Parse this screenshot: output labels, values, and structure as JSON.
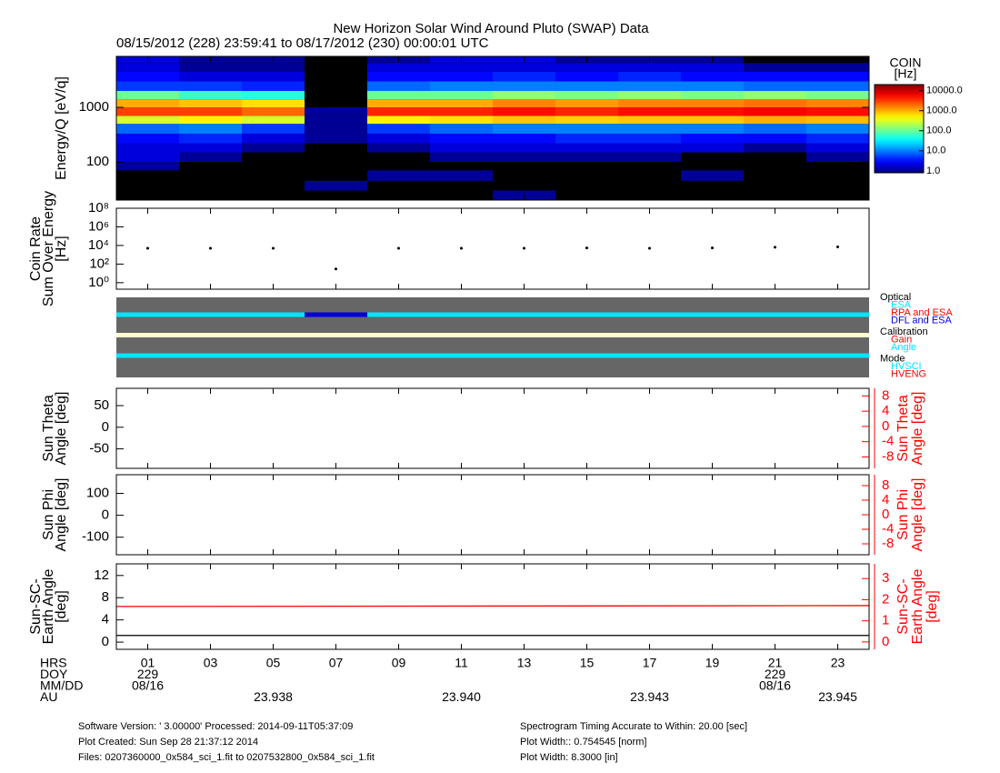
{
  "title": "New Horizon Solar Wind Around Pluto (SWAP) Data",
  "subtitle": "08/15/2012 (228) 23:59:41 to 08/17/2012 (230) 00:00:01 UTC",
  "time_axis": {
    "xlim": [
      0,
      24
    ],
    "row_labels": [
      "HRS",
      "DOY",
      "MM/DD",
      "AU"
    ],
    "hours": [
      {
        "value": 1,
        "label": "01"
      },
      {
        "value": 3,
        "label": "03"
      },
      {
        "value": 5,
        "label": "05"
      },
      {
        "value": 7,
        "label": "07"
      },
      {
        "value": 9,
        "label": "09"
      },
      11,
      13,
      15,
      17,
      19,
      21,
      23
    ],
    "doy": [
      {
        "value": 1,
        "label": "229"
      },
      {
        "value": 21,
        "label": "229"
      }
    ],
    "date": [
      {
        "value": 1,
        "label": "08/16"
      },
      {
        "value": 21,
        "label": "08/16"
      }
    ],
    "au": [
      {
        "value": 5,
        "label": "23.938"
      },
      {
        "value": 11,
        "label": "23.940"
      },
      {
        "value": 17,
        "label": "23.943"
      },
      {
        "value": 23,
        "label": "23.945"
      }
    ]
  },
  "chart_data": [
    {
      "type": "heatmap",
      "ylabel": [
        "Energy/Q [eV/q]"
      ],
      "ylog": true,
      "ylim": [
        20,
        8600
      ],
      "yticks": [
        100,
        1000
      ],
      "x_bins": [
        0,
        2,
        4,
        6,
        8,
        10,
        12,
        14,
        16,
        18,
        20,
        22,
        24
      ],
      "y_bins": [
        20,
        30,
        45,
        70,
        100,
        150,
        220,
        330,
        500,
        700,
        1000,
        1400,
        2000,
        3000,
        4500,
        6500,
        8600
      ],
      "z": [
        [
          null,
          null,
          null,
          1,
          2,
          2,
          3,
          8,
          300,
          3000,
          1000,
          100,
          5,
          3,
          2,
          2
        ],
        [
          null,
          null,
          null,
          null,
          1,
          2,
          4,
          10,
          500,
          3000,
          800,
          60,
          5,
          2,
          1,
          1
        ],
        [
          null,
          null,
          null,
          null,
          null,
          1,
          2,
          5,
          300,
          2000,
          600,
          50,
          4,
          2,
          1,
          1
        ],
        [
          null,
          1,
          null,
          null,
          null,
          null,
          1,
          1,
          1,
          1,
          null,
          null,
          null,
          null,
          null,
          null
        ],
        [
          null,
          null,
          1,
          null,
          null,
          1,
          2,
          5,
          500,
          4000,
          1000,
          100,
          8,
          3,
          2,
          1
        ],
        [
          null,
          null,
          1,
          null,
          1,
          2,
          3,
          8,
          600,
          4000,
          1000,
          100,
          10,
          3,
          2,
          2
        ],
        [
          1,
          null,
          null,
          null,
          1,
          2,
          3,
          10,
          800,
          5000,
          1500,
          150,
          10,
          4,
          2,
          2
        ],
        [
          null,
          null,
          null,
          null,
          1,
          2,
          4,
          10,
          700,
          4000,
          1200,
          120,
          10,
          3,
          2,
          1
        ],
        [
          null,
          null,
          null,
          null,
          1,
          2,
          4,
          10,
          800,
          5000,
          1500,
          150,
          10,
          4,
          2,
          1
        ],
        [
          null,
          null,
          1,
          null,
          null,
          2,
          3,
          10,
          800,
          5000,
          1500,
          120,
          10,
          3,
          2,
          1
        ],
        [
          null,
          null,
          null,
          null,
          null,
          1,
          3,
          8,
          1000,
          6000,
          1800,
          150,
          8,
          3,
          1,
          null
        ],
        [
          null,
          null,
          null,
          null,
          1,
          2,
          4,
          10,
          900,
          5000,
          1500,
          120,
          8,
          3,
          1,
          null
        ]
      ],
      "colorbar": {
        "title": [
          "COIN",
          "[Hz]"
        ],
        "zlim": [
          0.8,
          20000
        ],
        "ticks": [
          {
            "value": 1,
            "label": "1.0"
          },
          {
            "value": 10,
            "label": "10.0"
          },
          {
            "value": 100,
            "label": "100.0"
          },
          {
            "value": 1000,
            "label": "1000.0"
          },
          {
            "value": 10000,
            "label": "10000.0"
          }
        ]
      }
    },
    {
      "type": "scatter",
      "ylabel": [
        "Coin Rate",
        "Sum Over Energy",
        "[Hz]"
      ],
      "ylog": true,
      "ylim": [
        0.2,
        100000000
      ],
      "yticks": [
        {
          "value": 1,
          "label": "10⁰"
        },
        {
          "value": 100,
          "label": "10²"
        },
        {
          "value": 10000,
          "label": "10⁴"
        },
        {
          "value": 1000000,
          "label": "10⁶"
        },
        {
          "value": 100000000,
          "label": "10⁸"
        }
      ],
      "color": "#000000",
      "x": [
        1,
        3,
        5,
        7,
        9,
        11,
        13,
        15,
        17,
        19,
        21,
        23
      ],
      "values": [
        5000,
        5000,
        5000,
        30,
        5000,
        5000,
        5000,
        5500,
        5000,
        5500,
        6500,
        7000
      ]
    },
    {
      "type": "timeline",
      "background": "#666666",
      "lanes": [
        {
          "name": "Optical",
          "items": [
            {
              "name": "ESA",
              "color": "#00e5ff",
              "segments": [
                [
                  0,
                  6
                ],
                [
                  8,
                  24
                ]
              ]
            },
            {
              "name": "RPA and ESA",
              "color": "#ff0000",
              "segments": []
            },
            {
              "name": "DFL and ESA",
              "color": "#0000dd",
              "segments": [
                [
                  6,
                  8
                ]
              ]
            }
          ]
        },
        {
          "name": "Calibration",
          "items": [
            {
              "name": "Gain",
              "color": "#ff0000",
              "segments": []
            },
            {
              "name": "Angle",
              "color": "#00e5ff",
              "segments": []
            }
          ]
        },
        {
          "name": "Mode",
          "items": [
            {
              "name": "HVSCI",
              "color": "#00e5ff",
              "segments": [
                [
                  0,
                  24
                ]
              ]
            },
            {
              "name": "HVENG",
              "color": "#ff0000",
              "segments": []
            }
          ]
        }
      ]
    },
    {
      "type": "line",
      "ylabel": [
        "Sun Theta",
        "Angle [deg]"
      ],
      "y2label": [
        "Sun Theta",
        "Angle [deg]"
      ],
      "y2color": "#ff0000",
      "ylim": [
        -95,
        90
      ],
      "yticks": [
        -50,
        0,
        50
      ],
      "y2lim": [
        -11,
        10
      ],
      "y2ticks": [
        -8,
        -4,
        0,
        4,
        8
      ],
      "series": []
    },
    {
      "type": "line",
      "ylabel": [
        "Sun Phi",
        "Angle [deg]"
      ],
      "y2label": [
        "Sun Phi",
        "Angle [deg]"
      ],
      "y2color": "#ff0000",
      "ylim": [
        -180,
        185
      ],
      "yticks": [
        -100,
        0,
        100
      ],
      "y2lim": [
        -11,
        11
      ],
      "y2ticks": [
        -8,
        -4,
        0,
        4,
        8
      ],
      "series": []
    },
    {
      "type": "line",
      "ylabel": [
        "Sun-SC-",
        "Earth Angle",
        "[deg]"
      ],
      "y2label": [
        "Sun-SC-",
        "Earth Angle",
        "[deg]"
      ],
      "y2color": "#ff0000",
      "ylim": [
        -1.3,
        14.1
      ],
      "yticks": [
        0,
        4,
        8,
        12
      ],
      "y2lim": [
        -0.35,
        3.7
      ],
      "y2ticks": [
        0,
        1,
        2,
        3
      ],
      "series": [
        {
          "color": "#000000",
          "x": [
            0,
            24
          ],
          "values": [
            1.2,
            1.2
          ]
        },
        {
          "color": "#ff0000",
          "axis": "y2",
          "x": [
            0,
            24
          ],
          "values": [
            1.68,
            1.72
          ]
        }
      ]
    }
  ],
  "footer": {
    "left": [
      "Software Version:  ' 3.00000'  Processed: 2014-09-11T05:37:09",
      "Plot Created: Sun Sep 28 21:37:12 2014",
      "Files: 0207360000_0x584_sci_1.fit to 0207532800_0x584_sci_1.fit"
    ],
    "right": [
      "Spectrogram Timing Accurate to Within: 20.00 [sec]",
      "Plot Width:: 0.754545 [norm]",
      "Plot Width: 8.3000 [in]"
    ]
  }
}
